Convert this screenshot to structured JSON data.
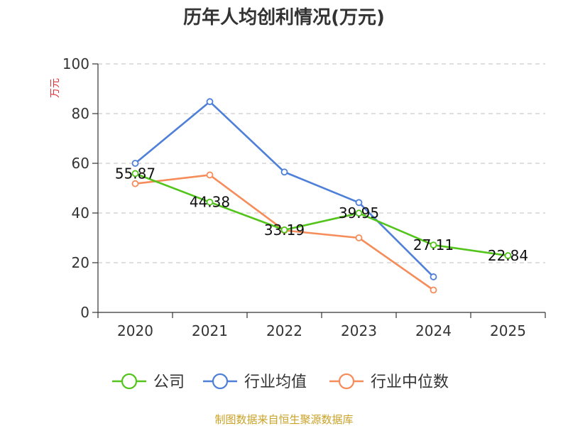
{
  "chart_data": {
    "type": "line",
    "title": "历年人均创利情况(万元)",
    "xlabel": "",
    "ylabel": "万元",
    "categories": [
      "2020",
      "2021",
      "2022",
      "2023",
      "2024",
      "2025"
    ],
    "ylim": [
      0,
      100
    ],
    "yticks": [
      0,
      20,
      40,
      60,
      80,
      100
    ],
    "ytick_labels": [
      "0",
      "20",
      "40",
      "60",
      "80",
      "100"
    ],
    "grid": true,
    "legend_position": "bottom",
    "series": [
      {
        "name": "公司",
        "color": "#52c41a",
        "values": [
          55.87,
          44.38,
          33.19,
          39.95,
          27.11,
          22.84
        ],
        "labels": [
          "55.87",
          "44.38",
          "33.19",
          "39.95",
          "27.11",
          "22.84"
        ]
      },
      {
        "name": "行业均值",
        "color": "#4e7fd9",
        "values": [
          60.0,
          84.8,
          56.5,
          44.2,
          14.3,
          null
        ]
      },
      {
        "name": "行业中位数",
        "color": "#f58c5a",
        "values": [
          51.8,
          55.3,
          33.0,
          30.0,
          9.0,
          null
        ]
      }
    ]
  },
  "source_text": "制图数据来自恒生聚源数据库"
}
